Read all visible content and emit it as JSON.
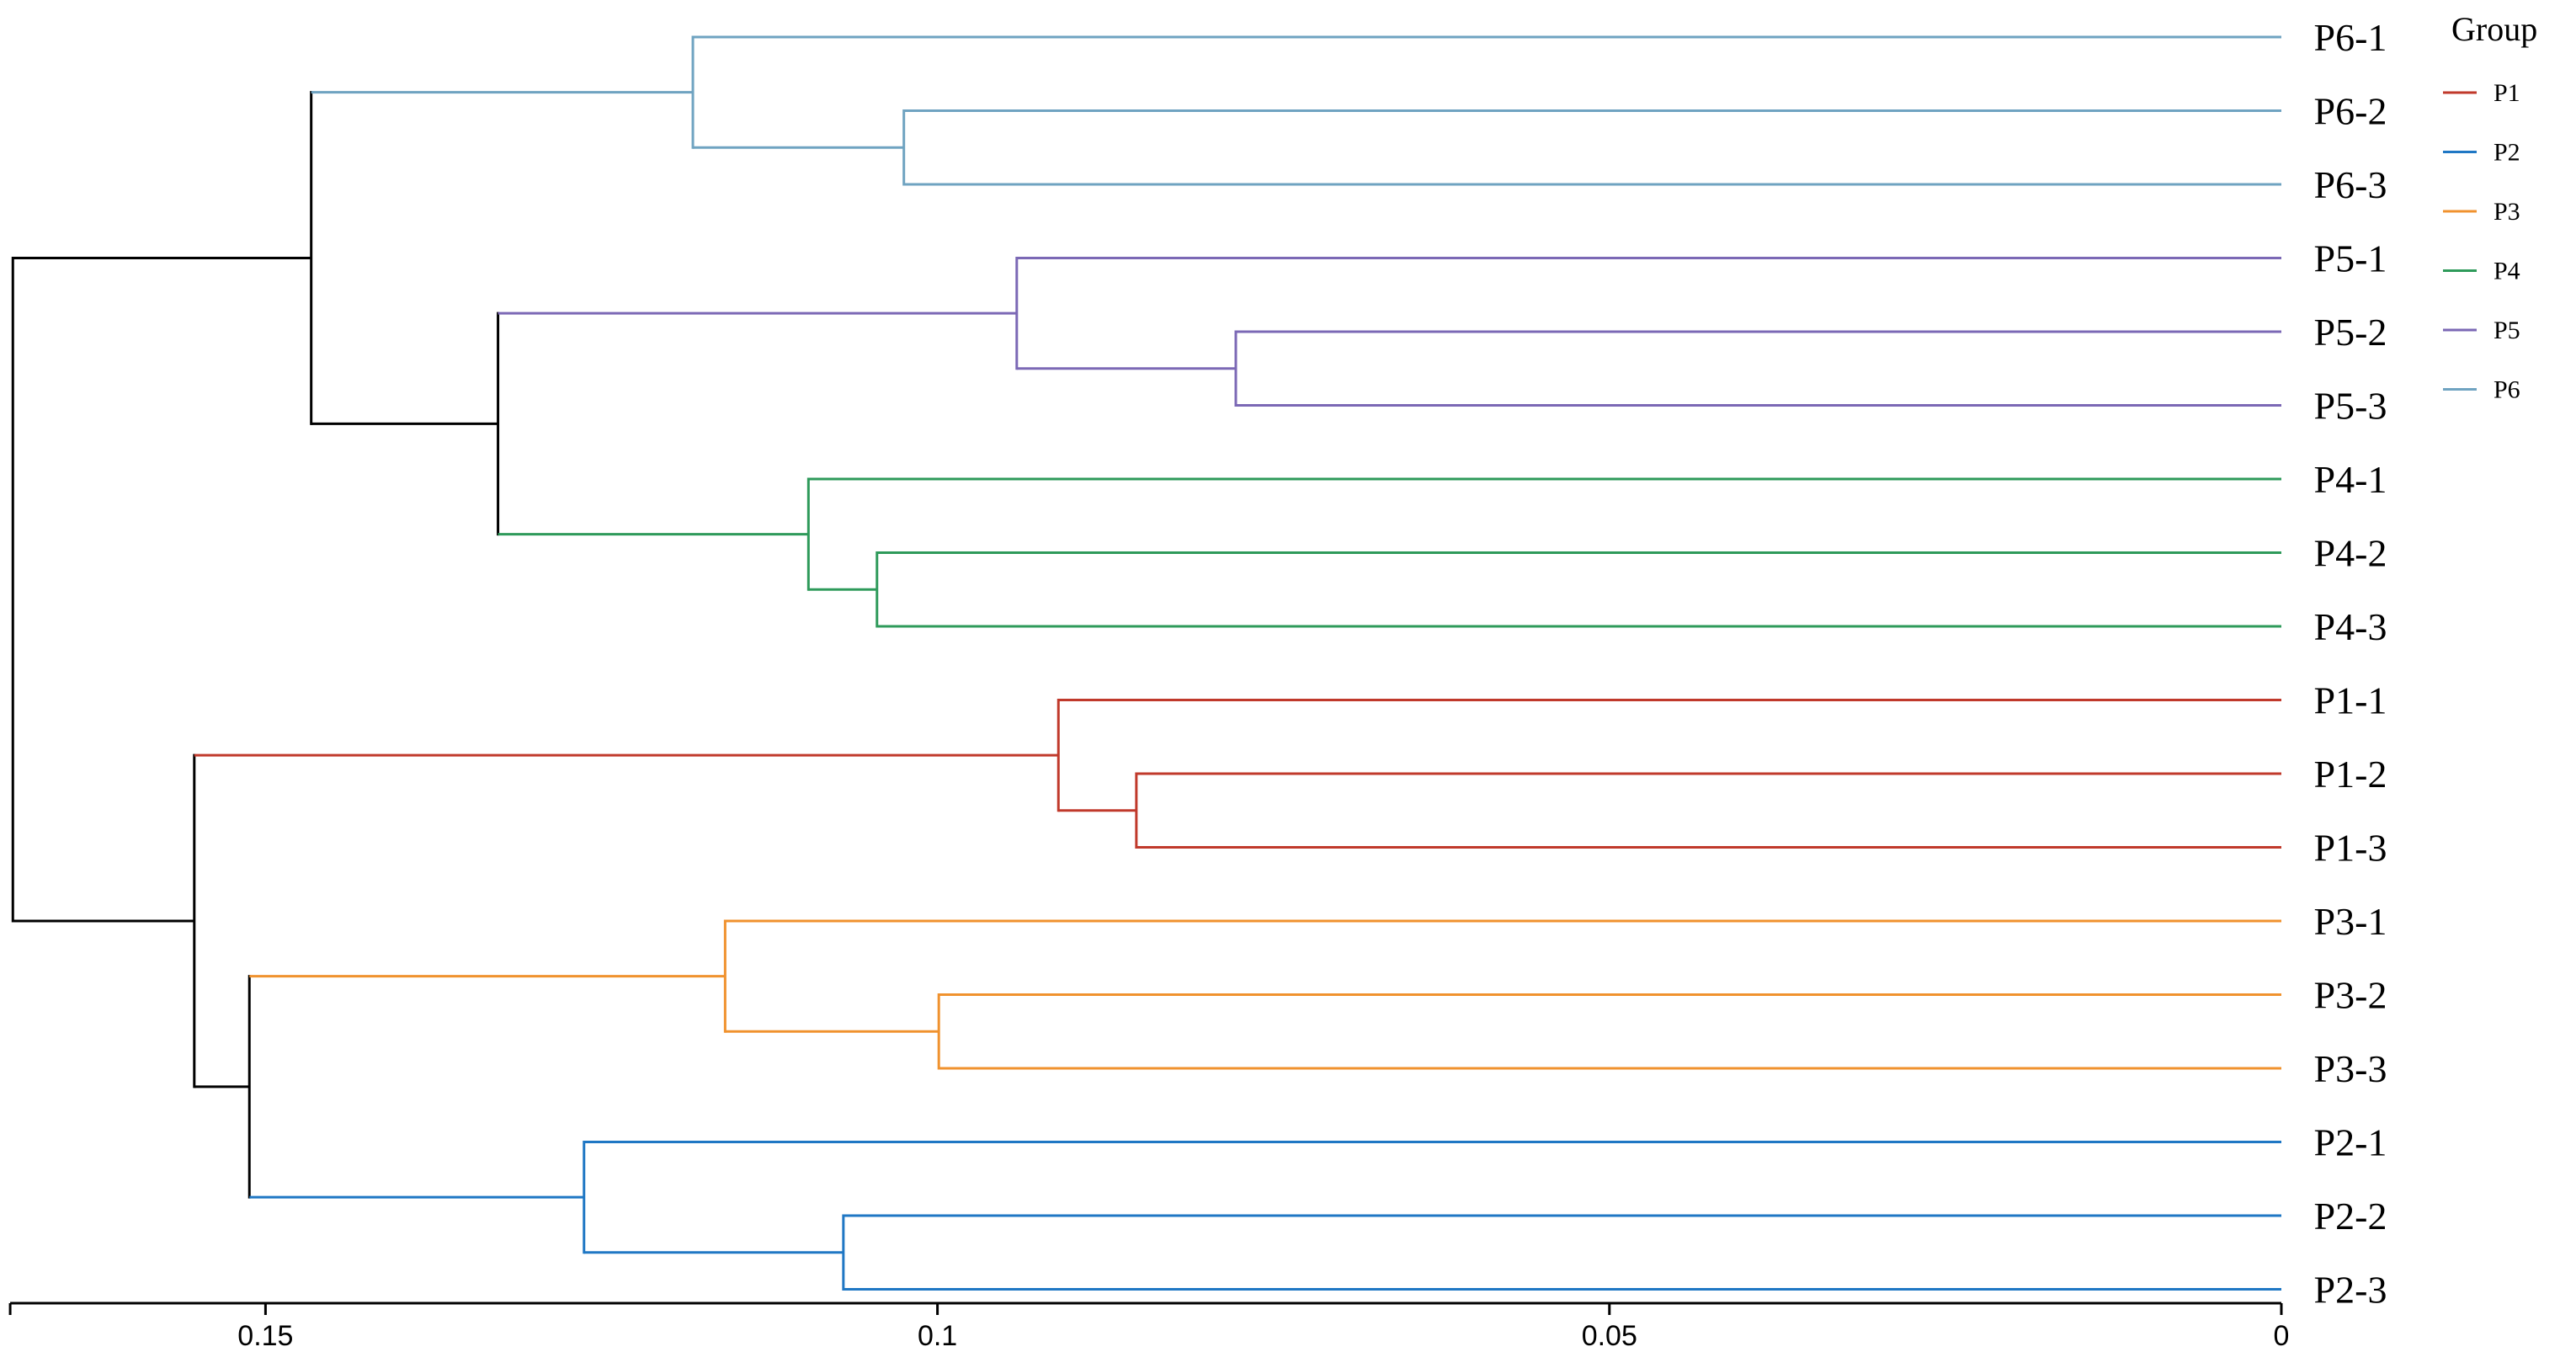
{
  "chart_data": {
    "type": "dendrogram",
    "x_axis": {
      "ticks": [
        0.15,
        0.1,
        0.05,
        0
      ],
      "tick_labels": [
        "0.15",
        "0.1",
        "0.05",
        "0"
      ],
      "range": [
        0.169,
        0
      ],
      "reversed": true
    },
    "grid": false,
    "legend": {
      "title": "Group",
      "placement": "top-right",
      "entries": [
        {
          "label": "P1",
          "color": "#c0392b"
        },
        {
          "label": "P2",
          "color": "#1f77c4"
        },
        {
          "label": "P3",
          "color": "#f0922e"
        },
        {
          "label": "P4",
          "color": "#2e9a5a"
        },
        {
          "label": "P5",
          "color": "#7b68b5"
        },
        {
          "label": "P6",
          "color": "#6fa3c1"
        }
      ]
    },
    "root_color": "#000000",
    "leaves": [
      "P6-1",
      "P6-2",
      "P6-3",
      "P5-1",
      "P5-2",
      "P5-3",
      "P4-1",
      "P4-2",
      "P4-3",
      "P1-1",
      "P1-2",
      "P1-3",
      "P3-1",
      "P3-2",
      "P3-3",
      "P2-1",
      "P2-2",
      "P2-3"
    ],
    "merges": [
      {
        "id": "a",
        "height": 0.1025,
        "children": [
          "P6-2",
          "P6-3"
        ],
        "group": "P6"
      },
      {
        "id": "b",
        "height": 0.1182,
        "children": [
          "P6-1",
          "a"
        ],
        "group": "P6"
      },
      {
        "id": "c",
        "height": 0.0778,
        "children": [
          "P5-2",
          "P5-3"
        ],
        "group": "P5"
      },
      {
        "id": "d",
        "height": 0.0941,
        "children": [
          "P5-1",
          "c"
        ],
        "group": "P5"
      },
      {
        "id": "e",
        "height": 0.1045,
        "children": [
          "P4-2",
          "P4-3"
        ],
        "group": "P4"
      },
      {
        "id": "f",
        "height": 0.1096,
        "children": [
          "P4-1",
          "e"
        ],
        "group": "P4"
      },
      {
        "id": "g",
        "height": 0.1327,
        "children": [
          "d",
          "f"
        ],
        "group": null
      },
      {
        "id": "h",
        "height": 0.1466,
        "children": [
          "b",
          "g"
        ],
        "group": null
      },
      {
        "id": "i",
        "height": 0.0852,
        "children": [
          "P1-2",
          "P1-3"
        ],
        "group": "P1"
      },
      {
        "id": "j",
        "height": 0.091,
        "children": [
          "P1-1",
          "i"
        ],
        "group": "P1"
      },
      {
        "id": "k",
        "height": 0.0999,
        "children": [
          "P3-2",
          "P3-3"
        ],
        "group": "P3"
      },
      {
        "id": "l",
        "height": 0.1158,
        "children": [
          "P3-1",
          "k"
        ],
        "group": "P3"
      },
      {
        "id": "m",
        "height": 0.107,
        "children": [
          "P2-2",
          "P2-3"
        ],
        "group": "P2"
      },
      {
        "id": "n",
        "height": 0.1263,
        "children": [
          "P2-1",
          "m"
        ],
        "group": "P2"
      },
      {
        "id": "o",
        "height": 0.1512,
        "children": [
          "l",
          "n"
        ],
        "group": null
      },
      {
        "id": "p",
        "height": 0.1553,
        "children": [
          "j",
          "o"
        ],
        "group": null
      },
      {
        "id": "q",
        "height": 0.1688,
        "children": [
          "h",
          "p"
        ],
        "group": null
      }
    ]
  }
}
